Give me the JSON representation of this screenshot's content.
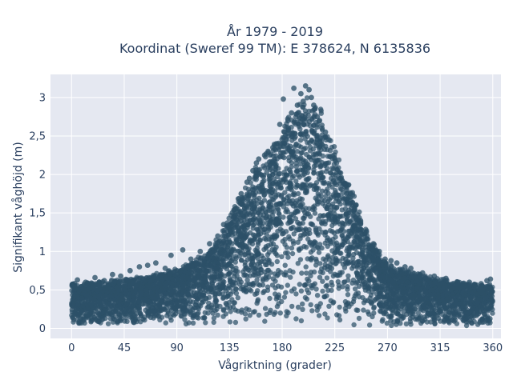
{
  "chart_data": {
    "type": "scatter",
    "title_line1": "År 1979 - 2019",
    "title_line2": "Koordinat (Sweref 99 TM): E 378624, N 6135836",
    "xlabel": "Vågriktning (grader)",
    "ylabel": "Signifikant våghöjd (m)",
    "xlim": [
      -18,
      367
    ],
    "ylim": [
      -0.13,
      3.3
    ],
    "x_ticks": [
      0,
      45,
      90,
      135,
      180,
      225,
      270,
      315,
      360
    ],
    "x_tick_labels": [
      "0",
      "45",
      "90",
      "135",
      "180",
      "225",
      "270",
      "315",
      "360"
    ],
    "y_ticks": [
      0,
      0.5,
      1,
      1.5,
      2,
      2.5,
      3
    ],
    "y_tick_labels": [
      "0",
      "0,5",
      "1",
      "1,5",
      "2",
      "2,5",
      "3"
    ],
    "grid": true,
    "legend": "none",
    "colors": {
      "marker": "#2d5168",
      "plot_background": "#e5e8f1",
      "grid": "#ffffff",
      "text": "#2a3f5f"
    },
    "envelope": {
      "direction": [
        0,
        20,
        45,
        70,
        90,
        110,
        125,
        135,
        145,
        155,
        165,
        175,
        185,
        195,
        205,
        215,
        225,
        235,
        245,
        255,
        270,
        290,
        315,
        340,
        360
      ],
      "max_height": [
        0.6,
        0.62,
        0.65,
        0.72,
        0.82,
        0.95,
        1.2,
        1.5,
        1.8,
        2.1,
        2.3,
        2.55,
        2.85,
        3.05,
        3.1,
        2.85,
        2.4,
        2.0,
        1.6,
        1.2,
        0.85,
        0.75,
        0.65,
        0.6,
        0.58
      ]
    },
    "series": [
      {
        "x": [
          200,
          203,
          196,
          205,
          198,
          208,
          193,
          188,
          185,
          210,
          214,
          182,
          178,
          175,
          172,
          168,
          165,
          160,
          158,
          155,
          152,
          220,
          225,
          230,
          235,
          238,
          242,
          247,
          252,
          258,
          263,
          268,
          273,
          278,
          285,
          290,
          300,
          310,
          320,
          330,
          340,
          350,
          355,
          358,
          5,
          12,
          20,
          28,
          35,
          42,
          50,
          58,
          65,
          72,
          80,
          85,
          95,
          102,
          110,
          118,
          125,
          130,
          140,
          145,
          150,
          207,
          212,
          217,
          190,
          181
        ],
        "y": [
          3.15,
          3.1,
          3.05,
          3.0,
          2.95,
          2.85,
          2.9,
          2.8,
          2.7,
          2.75,
          2.6,
          2.55,
          2.65,
          2.4,
          2.35,
          2.3,
          2.25,
          2.2,
          2.15,
          2.05,
          1.95,
          2.45,
          2.2,
          1.95,
          1.8,
          1.7,
          1.55,
          1.4,
          1.25,
          1.1,
          1.0,
          0.9,
          0.88,
          0.85,
          0.8,
          0.78,
          0.72,
          0.68,
          0.65,
          0.6,
          0.6,
          0.58,
          0.62,
          0.64,
          0.63,
          0.6,
          0.66,
          0.62,
          0.7,
          0.68,
          0.75,
          0.8,
          0.82,
          0.85,
          0.78,
          0.95,
          1.02,
          0.9,
          1.0,
          1.1,
          1.2,
          1.35,
          1.55,
          1.75,
          1.9,
          2.9,
          2.7,
          2.55,
          3.12,
          2.98
        ]
      }
    ]
  }
}
